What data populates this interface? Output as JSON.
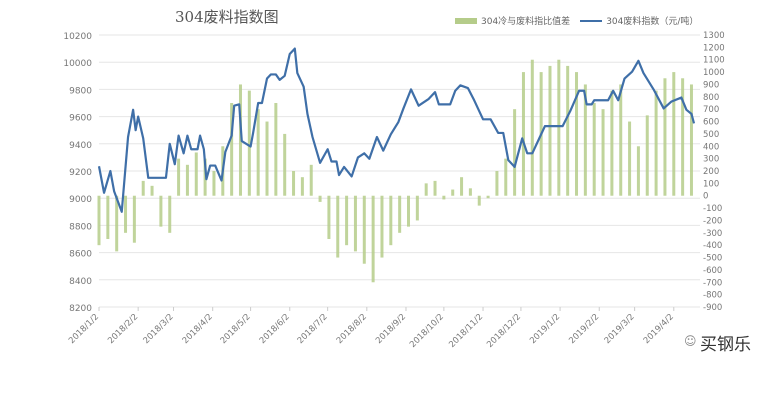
{
  "chart_data": {
    "type": "bar+line",
    "title": "304废料指数图",
    "legend_position": "top-right",
    "grid": true,
    "colors": {
      "bars": "#b5cc8a",
      "line": "#3f6fa8",
      "grid": "#e6e6e6",
      "text": "#777777"
    },
    "left_axis": {
      "ylim": [
        8200,
        10200
      ],
      "ticks": [
        8200,
        8400,
        8600,
        8800,
        9000,
        9200,
        9400,
        9600,
        9800,
        10000,
        10200
      ]
    },
    "right_axis": {
      "ylim": [
        -900,
        1300
      ],
      "ticks": [
        -900,
        -800,
        -700,
        -600,
        -500,
        -400,
        -300,
        -200,
        -100,
        0,
        100,
        200,
        300,
        400,
        500,
        600,
        700,
        800,
        900,
        1000,
        1100,
        1200,
        1300
      ]
    },
    "x_range": [
      "2018-01-02",
      "2019-04-18"
    ],
    "x_tick_labels": [
      "2018/1/2",
      "2018/2/2",
      "2018/3/2",
      "2018/4/2",
      "2018/5/2",
      "2018/6/2",
      "2018/7/2",
      "2018/8/2",
      "2018/9/2",
      "2018/10/2",
      "2018/11/2",
      "2018/12/2",
      "2019/1/2",
      "2019/2/2",
      "2019/3/2",
      "2019/4/2"
    ],
    "x_tick_dates": [
      "2018-01-02",
      "2018-02-02",
      "2018-03-02",
      "2018-04-02",
      "2018-05-02",
      "2018-06-02",
      "2018-07-02",
      "2018-08-02",
      "2018-09-02",
      "2018-10-02",
      "2018-11-02",
      "2018-12-02",
      "2019-01-02",
      "2019-02-02",
      "2019-03-02",
      "2019-04-02"
    ],
    "series": [
      {
        "name": "304冷与废料指比值差",
        "type": "bar",
        "axis": "right",
        "points": [
          [
            "2018-01-02",
            -400
          ],
          [
            "2018-01-09",
            -350
          ],
          [
            "2018-01-16",
            -450
          ],
          [
            "2018-01-23",
            -300
          ],
          [
            "2018-01-30",
            -380
          ],
          [
            "2018-02-06",
            120
          ],
          [
            "2018-02-13",
            80
          ],
          [
            "2018-02-20",
            -250
          ],
          [
            "2018-02-27",
            -300
          ],
          [
            "2018-03-06",
            300
          ],
          [
            "2018-03-13",
            250
          ],
          [
            "2018-03-20",
            350
          ],
          [
            "2018-03-27",
            300
          ],
          [
            "2018-04-03",
            200
          ],
          [
            "2018-04-10",
            400
          ],
          [
            "2018-04-17",
            750
          ],
          [
            "2018-04-24",
            900
          ],
          [
            "2018-05-01",
            850
          ],
          [
            "2018-05-08",
            700
          ],
          [
            "2018-05-15",
            600
          ],
          [
            "2018-05-22",
            750
          ],
          [
            "2018-05-29",
            500
          ],
          [
            "2018-06-05",
            200
          ],
          [
            "2018-06-12",
            150
          ],
          [
            "2018-06-19",
            250
          ],
          [
            "2018-06-26",
            -50
          ],
          [
            "2018-07-03",
            -350
          ],
          [
            "2018-07-10",
            -500
          ],
          [
            "2018-07-17",
            -400
          ],
          [
            "2018-07-24",
            -450
          ],
          [
            "2018-07-31",
            -550
          ],
          [
            "2018-08-07",
            -700
          ],
          [
            "2018-08-14",
            -500
          ],
          [
            "2018-08-21",
            -400
          ],
          [
            "2018-08-28",
            -300
          ],
          [
            "2018-09-04",
            -250
          ],
          [
            "2018-09-11",
            -200
          ],
          [
            "2018-09-18",
            100
          ],
          [
            "2018-09-25",
            120
          ],
          [
            "2018-10-02",
            -30
          ],
          [
            "2018-10-09",
            50
          ],
          [
            "2018-10-16",
            150
          ],
          [
            "2018-10-23",
            60
          ],
          [
            "2018-10-30",
            -80
          ],
          [
            "2018-11-06",
            -20
          ],
          [
            "2018-11-13",
            200
          ],
          [
            "2018-11-20",
            300
          ],
          [
            "2018-11-27",
            700
          ],
          [
            "2018-12-04",
            1000
          ],
          [
            "2018-12-11",
            1100
          ],
          [
            "2018-12-18",
            1000
          ],
          [
            "2018-12-25",
            1050
          ],
          [
            "2019-01-01",
            1100
          ],
          [
            "2019-01-08",
            1050
          ],
          [
            "2019-01-15",
            1000
          ],
          [
            "2019-01-22",
            900
          ],
          [
            "2019-01-29",
            750
          ],
          [
            "2019-02-05",
            700
          ],
          [
            "2019-02-12",
            850
          ],
          [
            "2019-02-19",
            900
          ],
          [
            "2019-02-26",
            600
          ],
          [
            "2019-03-05",
            400
          ],
          [
            "2019-03-12",
            650
          ],
          [
            "2019-03-19",
            850
          ],
          [
            "2019-03-26",
            950
          ],
          [
            "2019-04-02",
            1000
          ],
          [
            "2019-04-09",
            950
          ],
          [
            "2019-04-16",
            900
          ]
        ]
      },
      {
        "name": "304废料指数（元/吨）",
        "type": "line",
        "axis": "left",
        "points": [
          [
            "2018-01-02",
            9235
          ],
          [
            "2018-01-06",
            9040
          ],
          [
            "2018-01-11",
            9200
          ],
          [
            "2018-01-14",
            9050
          ],
          [
            "2018-01-20",
            8900
          ],
          [
            "2018-01-25",
            9450
          ],
          [
            "2018-01-29",
            9650
          ],
          [
            "2018-01-31",
            9500
          ],
          [
            "2018-02-02",
            9600
          ],
          [
            "2018-02-06",
            9440
          ],
          [
            "2018-02-10",
            9150
          ],
          [
            "2018-02-24",
            9150
          ],
          [
            "2018-02-27",
            9400
          ],
          [
            "2018-03-03",
            9250
          ],
          [
            "2018-03-06",
            9460
          ],
          [
            "2018-03-10",
            9330
          ],
          [
            "2018-03-13",
            9460
          ],
          [
            "2018-03-16",
            9360
          ],
          [
            "2018-03-21",
            9360
          ],
          [
            "2018-03-23",
            9460
          ],
          [
            "2018-03-26",
            9360
          ],
          [
            "2018-03-28",
            9140
          ],
          [
            "2018-03-31",
            9240
          ],
          [
            "2018-04-04",
            9240
          ],
          [
            "2018-04-09",
            9130
          ],
          [
            "2018-04-12",
            9340
          ],
          [
            "2018-04-17",
            9460
          ],
          [
            "2018-04-19",
            9680
          ],
          [
            "2018-04-23",
            9690
          ],
          [
            "2018-04-25",
            9420
          ],
          [
            "2018-05-02",
            9380
          ],
          [
            "2018-05-04",
            9480
          ],
          [
            "2018-05-08",
            9700
          ],
          [
            "2018-05-11",
            9700
          ],
          [
            "2018-05-15",
            9880
          ],
          [
            "2018-05-18",
            9910
          ],
          [
            "2018-05-22",
            9910
          ],
          [
            "2018-05-25",
            9870
          ],
          [
            "2018-05-29",
            9900
          ],
          [
            "2018-06-02",
            10060
          ],
          [
            "2018-06-06",
            10100
          ],
          [
            "2018-06-08",
            9920
          ],
          [
            "2018-06-13",
            9820
          ],
          [
            "2018-06-16",
            9620
          ],
          [
            "2018-06-20",
            9450
          ],
          [
            "2018-06-26",
            9260
          ],
          [
            "2018-07-02",
            9360
          ],
          [
            "2018-07-05",
            9270
          ],
          [
            "2018-07-09",
            9270
          ],
          [
            "2018-07-11",
            9170
          ],
          [
            "2018-07-15",
            9230
          ],
          [
            "2018-07-21",
            9160
          ],
          [
            "2018-07-26",
            9300
          ],
          [
            "2018-07-31",
            9330
          ],
          [
            "2018-08-04",
            9290
          ],
          [
            "2018-08-10",
            9450
          ],
          [
            "2018-08-15",
            9350
          ],
          [
            "2018-08-21",
            9470
          ],
          [
            "2018-08-27",
            9560
          ],
          [
            "2018-08-31",
            9660
          ],
          [
            "2018-09-06",
            9800
          ],
          [
            "2018-09-12",
            9680
          ],
          [
            "2018-09-20",
            9730
          ],
          [
            "2018-09-25",
            9780
          ],
          [
            "2018-09-28",
            9690
          ],
          [
            "2018-10-07",
            9690
          ],
          [
            "2018-10-11",
            9790
          ],
          [
            "2018-10-15",
            9830
          ],
          [
            "2018-10-21",
            9810
          ],
          [
            "2018-10-26",
            9720
          ],
          [
            "2018-11-02",
            9580
          ],
          [
            "2018-11-08",
            9580
          ],
          [
            "2018-11-14",
            9480
          ],
          [
            "2018-11-18",
            9480
          ],
          [
            "2018-11-22",
            9280
          ],
          [
            "2018-11-27",
            9230
          ],
          [
            "2018-12-03",
            9440
          ],
          [
            "2018-12-07",
            9330
          ],
          [
            "2018-12-11",
            9330
          ],
          [
            "2018-12-17",
            9450
          ],
          [
            "2018-12-21",
            9530
          ],
          [
            "2019-01-04",
            9530
          ],
          [
            "2019-01-10",
            9640
          ],
          [
            "2019-01-17",
            9790
          ],
          [
            "2019-01-21",
            9790
          ],
          [
            "2019-01-23",
            9690
          ],
          [
            "2019-01-27",
            9690
          ],
          [
            "2019-01-29",
            9720
          ],
          [
            "2019-02-09",
            9720
          ],
          [
            "2019-02-13",
            9790
          ],
          [
            "2019-02-17",
            9720
          ],
          [
            "2019-02-22",
            9880
          ],
          [
            "2019-02-28",
            9930
          ],
          [
            "2019-03-05",
            10010
          ],
          [
            "2019-03-09",
            9920
          ],
          [
            "2019-03-17",
            9800
          ],
          [
            "2019-03-25",
            9660
          ],
          [
            "2019-03-31",
            9710
          ],
          [
            "2019-04-08",
            9740
          ],
          [
            "2019-04-12",
            9650
          ],
          [
            "2019-04-16",
            9620
          ],
          [
            "2019-04-18",
            9550
          ]
        ]
      }
    ]
  },
  "legend": {
    "bar_label": "304冷与废料指比值差",
    "line_label": "304废料指数（元/吨）"
  },
  "watermark": "买钢乐"
}
